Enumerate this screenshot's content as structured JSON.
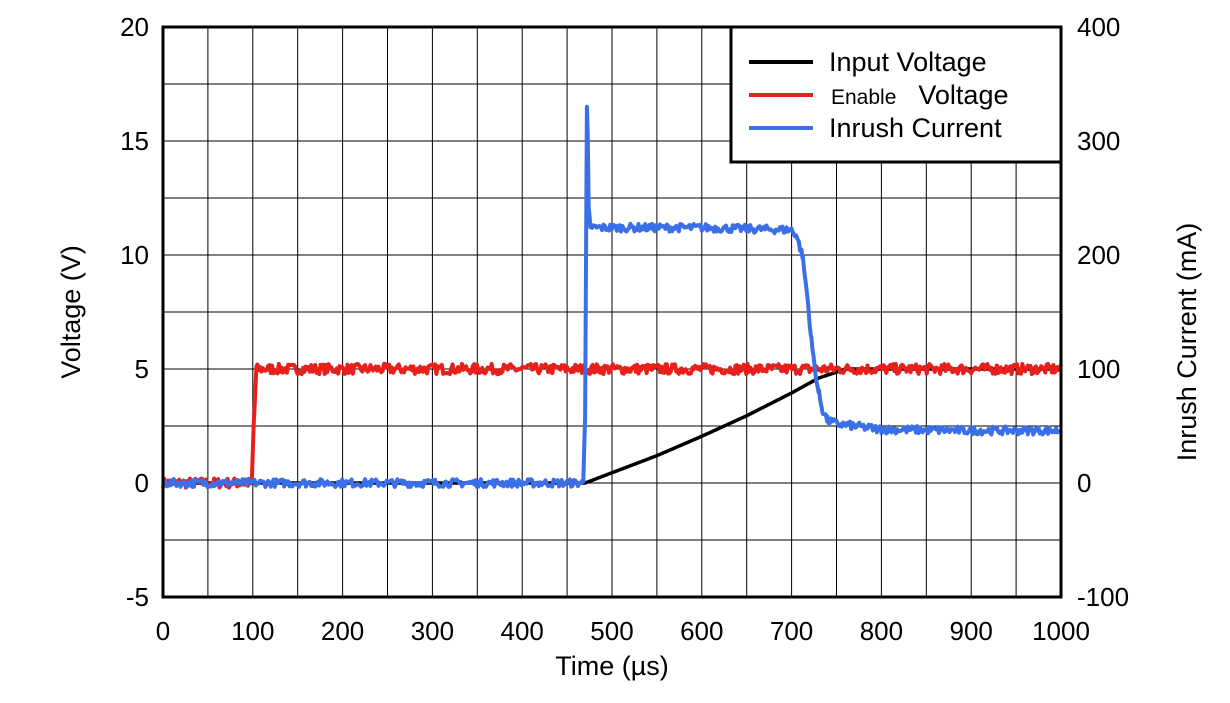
{
  "chart_data": {
    "type": "line",
    "xlabel": "Time (µs)",
    "ylabel_left": "Voltage (V)",
    "ylabel_right": "Inrush Current (mA)",
    "xlim": [
      0,
      1000
    ],
    "ylim_left": [
      -5,
      20
    ],
    "ylim_right": [
      -100,
      400
    ],
    "x_ticks": [
      0,
      100,
      200,
      300,
      400,
      500,
      600,
      700,
      800,
      900,
      1000
    ],
    "y_left_ticks": [
      -5,
      0,
      5,
      10,
      15,
      20
    ],
    "y_right_ticks": [
      -100,
      0,
      100,
      200,
      300,
      400
    ],
    "grid": true,
    "legend_position": "top-right",
    "legend": [
      {
        "label_parts": [
          "Input Voltage"
        ],
        "color": "#000000"
      },
      {
        "label_parts": [
          "Enable",
          "Voltage"
        ],
        "color": "#e8201c"
      },
      {
        "label_parts": [
          "Inrush Current"
        ],
        "color": "#3b6fe8"
      }
    ],
    "series": [
      {
        "name": "Input Voltage",
        "axis": "left",
        "color": "#000000",
        "x": [
          0,
          470,
          500,
          550,
          600,
          650,
          700,
          730,
          760,
          1000
        ],
        "y": [
          0,
          0,
          0.45,
          1.2,
          2.05,
          2.95,
          3.95,
          4.6,
          5.0,
          5.0
        ]
      },
      {
        "name": "Enable Voltage",
        "axis": "left",
        "color": "#e8201c",
        "x": [
          0,
          99,
          101,
          104,
          1000
        ],
        "y": [
          0,
          0,
          2.5,
          5.0,
          5.0
        ]
      },
      {
        "name": "Inrush Current",
        "axis": "right",
        "color": "#3b6fe8",
        "x": [
          0,
          468,
          470,
          472,
          473,
          474,
          476,
          478,
          480,
          500,
          600,
          700,
          705,
          712,
          718,
          722,
          726,
          730,
          734,
          740,
          750,
          770,
          800,
          900,
          1000
        ],
        "y": [
          0,
          0,
          60,
          330,
          300,
          240,
          222,
          225,
          224,
          224,
          224,
          222,
          218,
          200,
          160,
          125,
          100,
          80,
          65,
          55,
          52,
          50,
          47,
          46,
          46
        ]
      }
    ]
  }
}
